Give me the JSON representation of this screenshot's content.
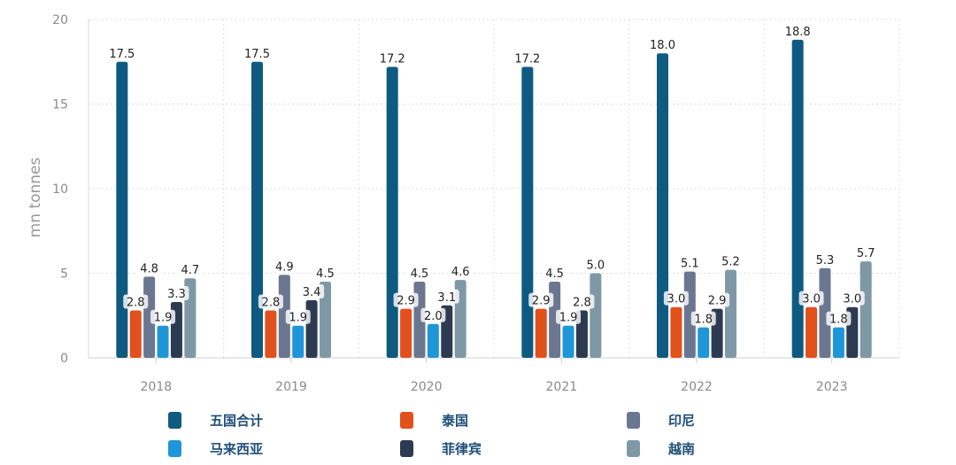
{
  "chart_data": {
    "type": "bar",
    "ylabel": "mn tonnes",
    "xlabel": "",
    "ylim": [
      0,
      20
    ],
    "yticks": [
      0,
      5,
      10,
      15,
      20
    ],
    "grid": true,
    "legend_position": "bottom",
    "categories": [
      "2018",
      "2019",
      "2020",
      "2021",
      "2022",
      "2023"
    ],
    "series": [
      {
        "name": "五国合计",
        "color": "#0e5a80",
        "values": [
          17.5,
          17.5,
          17.2,
          17.2,
          18.0,
          18.8
        ]
      },
      {
        "name": "泰国",
        "color": "#e2501c",
        "values": [
          2.8,
          2.8,
          2.9,
          2.9,
          3.0,
          3.0
        ]
      },
      {
        "name": "印尼",
        "color": "#6b7690",
        "values": [
          4.8,
          4.9,
          4.5,
          4.5,
          5.1,
          5.3
        ]
      },
      {
        "name": "马来西亚",
        "color": "#1e96d8",
        "values": [
          1.9,
          1.9,
          2.0,
          1.9,
          1.8,
          1.8
        ]
      },
      {
        "name": "菲律宾",
        "color": "#2d3b52",
        "values": [
          3.3,
          3.4,
          3.1,
          2.8,
          2.9,
          3.0
        ]
      },
      {
        "name": "越南",
        "color": "#7f98a6",
        "values": [
          4.7,
          4.5,
          4.6,
          5.0,
          5.2,
          5.7
        ]
      }
    ],
    "value_labels": [
      [
        "17.5",
        "17.5",
        "17.2",
        "17.2",
        "18.0",
        "18.8"
      ],
      [
        "2.8",
        "2.8",
        "2.9",
        "2.9",
        "3.0",
        "3.0"
      ],
      [
        "4.8",
        "4.9",
        "4.5",
        "4.5",
        "5.1",
        "5.3"
      ],
      [
        "1.9",
        "1.9",
        "2.0",
        "1.9",
        "1.8",
        "1.8"
      ],
      [
        "3.3",
        "3.4",
        "3.1",
        "2.8",
        "2.9",
        "3.0"
      ],
      [
        "4.7",
        "4.5",
        "4.6",
        "5.0",
        "5.2",
        "5.7"
      ]
    ]
  }
}
